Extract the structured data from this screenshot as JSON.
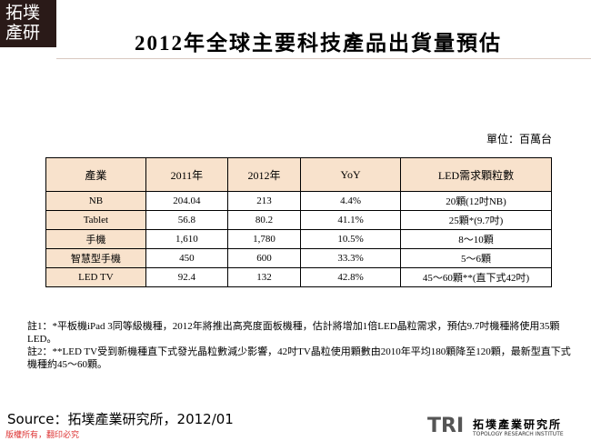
{
  "logo": {
    "line1": "拓墣",
    "line2": "產研"
  },
  "header": {
    "title": "2012年全球主要科技產品出貨量預估"
  },
  "unit": "單位：百萬台",
  "table": {
    "header": [
      "產業",
      "2011年",
      "2012年",
      "YoY",
      "LED需求顆粒數"
    ],
    "rows": [
      [
        "NB",
        "204.04",
        "213",
        "4.4%",
        "20顆(12吋NB)"
      ],
      [
        "Tablet",
        "56.8",
        "80.2",
        "41.1%",
        "25顆*(9.7吋)"
      ],
      [
        "手機",
        "1,610",
        "1,780",
        "10.5%",
        "8～10顆"
      ],
      [
        "智慧型手機",
        "450",
        "600",
        "33.3%",
        "5～6顆"
      ],
      [
        "LED TV",
        "92.4",
        "132",
        "42.8%",
        "45～60顆**(直下式42吋)"
      ]
    ]
  },
  "notes": [
    "註1：*平板機iPad 3同等級機種，2012年將推出高亮度面板機種，估計將增加1倍LED晶粒需求，預估9.7吋機種將使用35顆LED。",
    "註2：**LED TV受到新機種直下式發光晶粒數減少影響，42吋TV晶粒使用顆數由2010年平均180顆降至120顆，最新型直下式機種約45～60顆。"
  ],
  "source": "Source：拓墣產業研究所，2012/01",
  "footer": {
    "copyright": "版權所有，翻印必究"
  },
  "brand": {
    "abbr": "TRI",
    "name": "拓墣產業研究所",
    "subtitle": "TOPOLOGY RESEARCH INSTITUTE"
  }
}
